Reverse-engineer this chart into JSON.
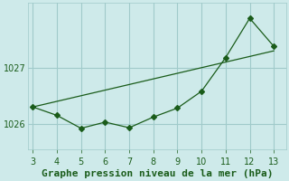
{
  "x_data": [
    3,
    4,
    5,
    6,
    7,
    8,
    9,
    10,
    11,
    12,
    13
  ],
  "y_data": [
    1026.3,
    1026.15,
    1025.92,
    1026.03,
    1025.93,
    1026.12,
    1026.28,
    1026.58,
    1027.18,
    1027.88,
    1027.38
  ],
  "x_trend": [
    3,
    4,
    5,
    6,
    7,
    8,
    9,
    10,
    11,
    12,
    13
  ],
  "y_trend": [
    1026.3,
    1026.4,
    1026.5,
    1026.6,
    1026.7,
    1026.8,
    1026.9,
    1027.0,
    1027.1,
    1027.2,
    1027.3
  ],
  "line_color": "#1a5c1a",
  "marker_style": "D",
  "marker_size": 3,
  "bg_color": "#ceeaea",
  "grid_color": "#a0caca",
  "xlabel": "Graphe pression niveau de la mer (hPa)",
  "xlabel_color": "#1a5c1a",
  "xlabel_fontsize": 8,
  "tick_color": "#1a5c1a",
  "tick_fontsize": 7,
  "xlim": [
    2.8,
    13.5
  ],
  "ylim": [
    1025.55,
    1028.15
  ],
  "yticks": [
    1026,
    1027
  ],
  "xticks": [
    3,
    4,
    5,
    6,
    7,
    8,
    9,
    10,
    11,
    12,
    13
  ]
}
